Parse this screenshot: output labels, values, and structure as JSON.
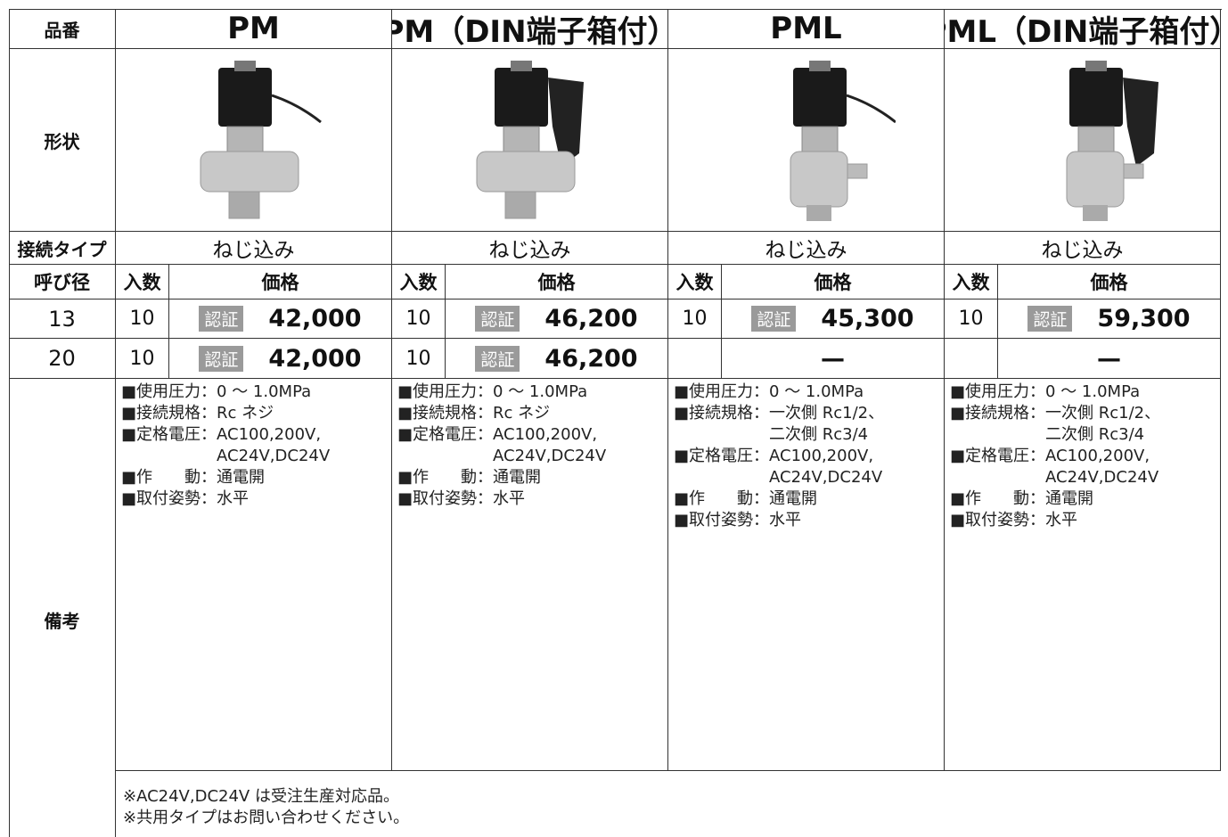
{
  "header": {
    "label": "品番",
    "products": [
      "PM",
      "PM（DIN端子箱付）",
      "PML",
      "PML（DIN端子箱付）"
    ]
  },
  "shape_label": "形状",
  "connection": {
    "label": "接続タイプ",
    "values": [
      "ねじ込み",
      "ねじ込み",
      "ねじ込み",
      "ねじ込み"
    ]
  },
  "size_header": {
    "label": "呼び径",
    "qty": "入数",
    "price": "価格"
  },
  "rows": [
    {
      "size": "13",
      "cells": [
        {
          "qty": "10",
          "badge": "認証",
          "price": "42,000"
        },
        {
          "qty": "10",
          "badge": "認証",
          "price": "46,200"
        },
        {
          "qty": "10",
          "badge": "認証",
          "price": "45,300"
        },
        {
          "qty": "10",
          "badge": "認証",
          "price": "59,300"
        }
      ]
    },
    {
      "size": "20",
      "cells": [
        {
          "qty": "10",
          "badge": "認証",
          "price": "42,000"
        },
        {
          "qty": "10",
          "badge": "認証",
          "price": "46,200"
        },
        {
          "price": "—"
        },
        {
          "price": "—"
        }
      ]
    }
  ],
  "remarks": {
    "label": "備考",
    "notes": [
      [
        {
          "label": "■使用圧力：",
          "lines": [
            "0 ～ 1.0MPa"
          ]
        },
        {
          "label": "■接続規格：",
          "lines": [
            "Rc ネジ"
          ]
        },
        {
          "label": "■定格電圧：",
          "lines": [
            "AC100,200V,",
            "AC24V,DC24V"
          ]
        },
        {
          "label": "■作　　動：",
          "lines": [
            "通電開"
          ]
        },
        {
          "label": "■取付姿勢：",
          "lines": [
            "水平"
          ]
        }
      ],
      [
        {
          "label": "■使用圧力：",
          "lines": [
            "0 ～ 1.0MPa"
          ]
        },
        {
          "label": "■接続規格：",
          "lines": [
            "Rc ネジ"
          ]
        },
        {
          "label": "■定格電圧：",
          "lines": [
            "AC100,200V,",
            "AC24V,DC24V"
          ]
        },
        {
          "label": "■作　　動：",
          "lines": [
            "通電開"
          ]
        },
        {
          "label": "■取付姿勢：",
          "lines": [
            "水平"
          ]
        }
      ],
      [
        {
          "label": "■使用圧力：",
          "lines": [
            "0 ～ 1.0MPa"
          ]
        },
        {
          "label": "■接続規格：",
          "lines": [
            "一次側 Rc1/2、",
            "二次側 Rc3/4"
          ]
        },
        {
          "label": "■定格電圧：",
          "lines": [
            "AC100,200V,",
            "AC24V,DC24V"
          ]
        },
        {
          "label": "■作　　動：",
          "lines": [
            "通電開"
          ]
        },
        {
          "label": "■取付姿勢：",
          "lines": [
            "水平"
          ]
        }
      ],
      [
        {
          "label": "■使用圧力：",
          "lines": [
            "0 ～ 1.0MPa"
          ]
        },
        {
          "label": "■接続規格：",
          "lines": [
            "一次側 Rc1/2、",
            "二次側 Rc3/4"
          ]
        },
        {
          "label": "■定格電圧：",
          "lines": [
            "AC100,200V,",
            "AC24V,DC24V"
          ]
        },
        {
          "label": "■作　　動：",
          "lines": [
            "通電開"
          ]
        },
        {
          "label": "■取付姿勢：",
          "lines": [
            "水平"
          ]
        }
      ]
    ],
    "footnotes": [
      "※AC24V,DC24V は受注生産対応品。",
      "※共用タイプはお問い合わせください。"
    ]
  }
}
